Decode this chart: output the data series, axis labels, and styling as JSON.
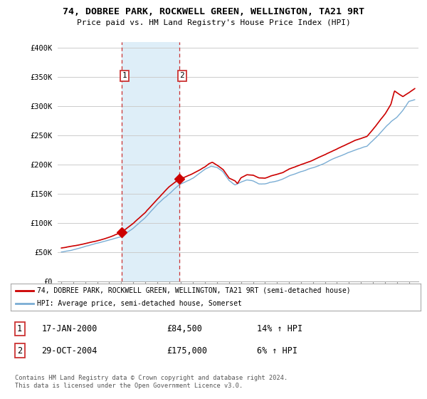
{
  "title": "74, DOBREE PARK, ROCKWELL GREEN, WELLINGTON, TA21 9RT",
  "subtitle": "Price paid vs. HM Land Registry's House Price Index (HPI)",
  "ylabel_ticks": [
    "£0",
    "£50K",
    "£100K",
    "£150K",
    "£200K",
    "£250K",
    "£300K",
    "£350K",
    "£400K"
  ],
  "ytick_vals": [
    0,
    50000,
    100000,
    150000,
    200000,
    250000,
    300000,
    350000,
    400000
  ],
  "ylim": [
    0,
    410000
  ],
  "xlim_left": 1994.7,
  "xlim_right": 2024.8,
  "hpi_color": "#7aadd4",
  "price_color": "#cc0000",
  "shaded_color": "#deeef8",
  "vline_color": "#cc3333",
  "legend_label_price": "74, DOBREE PARK, ROCKWELL GREEN, WELLINGTON, TA21 9RT (semi-detached house)",
  "legend_label_hpi": "HPI: Average price, semi-detached house, Somerset",
  "sale1_date": "17-JAN-2000",
  "sale1_price": 84500,
  "sale1_hpi": "14% ↑ HPI",
  "sale1_year": 2000.04,
  "sale2_date": "29-OCT-2004",
  "sale2_price": 175000,
  "sale2_hpi": "6% ↑ HPI",
  "sale2_year": 2004.83,
  "footnote": "Contains HM Land Registry data © Crown copyright and database right 2024.\nThis data is licensed under the Open Government Licence v3.0."
}
